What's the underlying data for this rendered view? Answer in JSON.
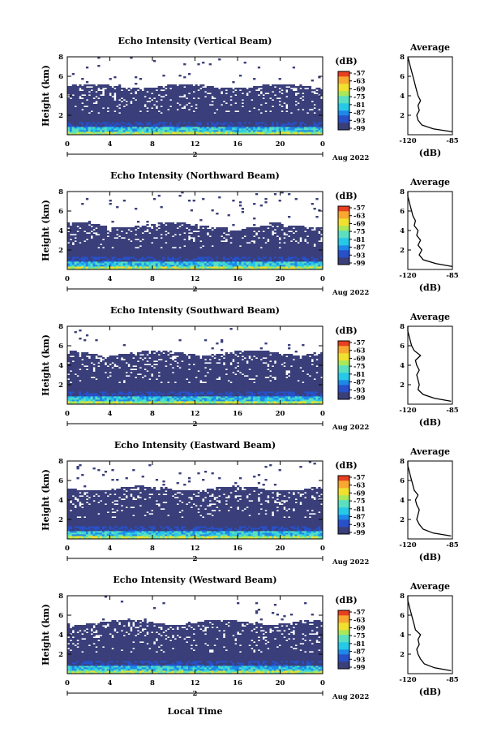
{
  "colors": {
    "background": "#3a3f7a",
    "colormap": [
      "#3a3f7a",
      "#2850c8",
      "#1e88e8",
      "#27c8e8",
      "#5ae0c0",
      "#a8e85a",
      "#f0e030",
      "#f8a830",
      "#e84020"
    ],
    "white": "#ffffff"
  },
  "x_axis": {
    "ticks": [
      "0",
      "4",
      "8",
      "12",
      "16",
      "20",
      "0"
    ],
    "day_label": "2",
    "month_label": "Aug 2022",
    "xlabel": "Local Time"
  },
  "colorbar": {
    "unit": "(dB)",
    "ticks": [
      "-57",
      "-63",
      "-69",
      "-75",
      "-81",
      "-87",
      "-93",
      "-99"
    ]
  },
  "avg_axis": {
    "title": "Average",
    "xticks": [
      "-120",
      "-85"
    ],
    "xlabel": "(dB)",
    "yticks": [
      "8",
      "6",
      "4",
      "2"
    ]
  },
  "chart_data": [
    {
      "type": "heatmap",
      "title": "Echo Intensity (Vertical Beam)",
      "ylabel": "Height (km)",
      "yticks": [
        "8",
        "6",
        "4",
        "2"
      ],
      "xlim": [
        0,
        24
      ],
      "ylim": [
        0,
        8
      ],
      "zlim": [
        -99,
        -57
      ],
      "top_of_echo_km": 5.0,
      "average_profile": {
        "height_km": [
          0.3,
          0.6,
          1.0,
          1.5,
          2.0,
          2.5,
          3.0,
          3.5,
          4.0,
          4.5,
          5.0,
          5.5,
          6.0,
          6.5,
          7.0,
          7.5,
          8.0
        ],
        "db": [
          -85,
          -100,
          -109,
          -112,
          -113,
          -111,
          -112,
          -110,
          -112,
          -113,
          -114,
          -115,
          -116,
          -117,
          -118,
          -119,
          -120
        ]
      }
    },
    {
      "type": "heatmap",
      "title": "Echo Intensity (Northward Beam)",
      "ylabel": "Height (km)",
      "yticks": [
        "8",
        "6",
        "4",
        "2"
      ],
      "xlim": [
        0,
        24
      ],
      "ylim": [
        0,
        8
      ],
      "zlim": [
        -99,
        -57
      ],
      "top_of_echo_km": 4.6,
      "average_profile": {
        "height_km": [
          0.3,
          0.6,
          1.0,
          1.5,
          2.0,
          2.5,
          3.0,
          3.5,
          4.0,
          4.5,
          5.0,
          5.5,
          6.0,
          6.5,
          7.0,
          7.5,
          8.0
        ],
        "db": [
          -85,
          -98,
          -108,
          -111,
          -109,
          -112,
          -110,
          -113,
          -112,
          -115,
          -114,
          -116,
          -117,
          -118,
          -119,
          -120,
          -121
        ]
      }
    },
    {
      "type": "heatmap",
      "title": "Echo Intensity (Southward Beam)",
      "ylabel": "Height (km)",
      "yticks": [
        "8",
        "6",
        "4",
        "2"
      ],
      "xlim": [
        0,
        24
      ],
      "ylim": [
        0,
        8
      ],
      "zlim": [
        -99,
        -57
      ],
      "top_of_echo_km": 5.3,
      "average_profile": {
        "height_km": [
          0.3,
          0.6,
          1.0,
          1.5,
          2.0,
          2.5,
          3.0,
          3.5,
          4.0,
          4.5,
          5.0,
          5.5,
          6.0,
          6.5,
          7.0,
          7.5,
          8.0
        ],
        "db": [
          -86,
          -99,
          -108,
          -112,
          -111,
          -112,
          -113,
          -111,
          -113,
          -114,
          -110,
          -115,
          -117,
          -118,
          -119,
          -120,
          -121
        ]
      }
    },
    {
      "type": "heatmap",
      "title": "Echo Intensity (Eastward Beam)",
      "ylabel": "Height (km)",
      "yticks": [
        "8",
        "6",
        "4",
        "2"
      ],
      "xlim": [
        0,
        24
      ],
      "ylim": [
        0,
        8
      ],
      "zlim": [
        -99,
        -57
      ],
      "top_of_echo_km": 5.2,
      "average_profile": {
        "height_km": [
          0.3,
          0.6,
          1.0,
          1.5,
          2.0,
          2.5,
          3.0,
          3.5,
          4.0,
          4.5,
          5.0,
          5.5,
          6.0,
          6.5,
          7.0,
          7.5,
          8.0
        ],
        "db": [
          -86,
          -100,
          -108,
          -111,
          -113,
          -112,
          -111,
          -113,
          -114,
          -112,
          -115,
          -116,
          -117,
          -118,
          -119,
          -120,
          -121
        ]
      }
    },
    {
      "type": "heatmap",
      "title": "Echo Intensity (Westward Beam)",
      "ylabel": "Height (km)",
      "yticks": [
        "8",
        "6",
        "4",
        "2"
      ],
      "xlim": [
        0,
        24
      ],
      "ylim": [
        0,
        8
      ],
      "zlim": [
        -99,
        -57
      ],
      "top_of_echo_km": 5.3,
      "average_profile": {
        "height_km": [
          0.3,
          0.6,
          1.0,
          1.5,
          2.0,
          2.5,
          3.0,
          3.5,
          4.0,
          4.5,
          5.0,
          5.5,
          6.0,
          6.5,
          7.0,
          7.5,
          8.0
        ],
        "db": [
          -86,
          -99,
          -107,
          -110,
          -112,
          -113,
          -111,
          -112,
          -110,
          -114,
          -115,
          -116,
          -117,
          -118,
          -119,
          -120,
          -121
        ]
      }
    }
  ]
}
